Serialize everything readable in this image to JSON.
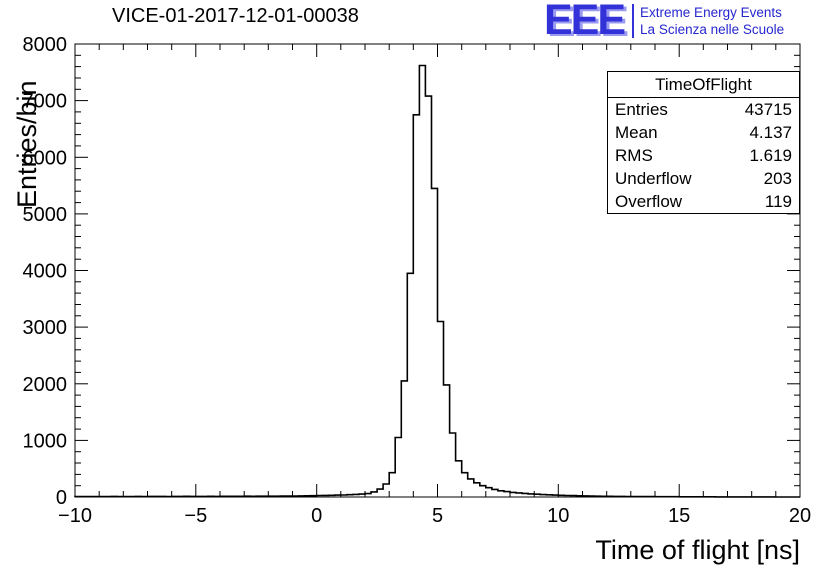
{
  "header": {
    "title": "VICE-01-2017-12-01-00038",
    "logo": {
      "acronym": "EEE",
      "line1": "Extreme Energy Events",
      "line2": "La Scienza nelle Scuole",
      "blue": "#3232d8",
      "light_blue": "#9a9af0"
    }
  },
  "stats_box": {
    "title": "TimeOfFlight",
    "rows": [
      {
        "label": "Entries",
        "value": "43715"
      },
      {
        "label": "Mean",
        "value": "4.137"
      },
      {
        "label": "RMS",
        "value": "1.619"
      },
      {
        "label": "Underflow",
        "value": "203"
      },
      {
        "label": "Overflow",
        "value": "119"
      }
    ]
  },
  "chart_data": {
    "type": "histogram",
    "title": "VICE-01-2017-12-01-00038",
    "xlabel": "Time of flight [ns]",
    "ylabel": "Entries/bin",
    "xlim": [
      -10,
      20
    ],
    "ylim": [
      0,
      8000
    ],
    "x_major_ticks": [
      -10,
      -5,
      0,
      5,
      10,
      15,
      20
    ],
    "x_tick_labels": [
      "−10",
      "−5",
      "0",
      "5",
      "10",
      "15",
      "20"
    ],
    "y_major_ticks": [
      0,
      1000,
      2000,
      3000,
      4000,
      5000,
      6000,
      7000,
      8000
    ],
    "x_minor_step": 1,
    "y_minor_step": 200,
    "line_color": "#000000",
    "bin_start": -10,
    "bin_width": 0.25,
    "counts": [
      7,
      8,
      8,
      9,
      8,
      9,
      10,
      9,
      8,
      9,
      10,
      9,
      10,
      11,
      10,
      9,
      10,
      11,
      12,
      11,
      10,
      11,
      12,
      11,
      12,
      13,
      12,
      13,
      14,
      13,
      14,
      15,
      14,
      15,
      16,
      17,
      18,
      19,
      21,
      23,
      26,
      28,
      30,
      33,
      36,
      40,
      46,
      52,
      60,
      90,
      140,
      230,
      430,
      1050,
      2050,
      3950,
      6750,
      7620,
      7080,
      5450,
      3100,
      1980,
      1130,
      640,
      430,
      320,
      250,
      200,
      165,
      135,
      110,
      95,
      82,
      72,
      63,
      55,
      49,
      43,
      38,
      34,
      30,
      27,
      24,
      21,
      19,
      17,
      15,
      13,
      12,
      11,
      10,
      9,
      8,
      8,
      7,
      7,
      6,
      6,
      5,
      5,
      4,
      4,
      4,
      3,
      3,
      3,
      2,
      2,
      2,
      2,
      2,
      1,
      1,
      1,
      1,
      1,
      0,
      0,
      0,
      0
    ]
  }
}
